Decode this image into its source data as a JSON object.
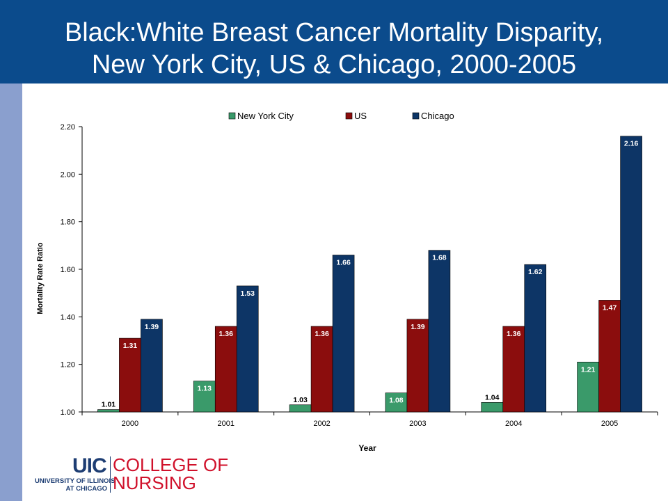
{
  "header": {
    "title_line1": "Black:White Breast Cancer Mortality Disparity,",
    "title_line2": "New York City, US & Chicago, 2000-2005"
  },
  "colors": {
    "header_bg": "#0b4b8c",
    "side_bar": "#8a9fce",
    "logo_navy": "#1d3d73",
    "logo_red": "#d0112b"
  },
  "chart_data": {
    "type": "bar",
    "title": "Black:White Breast Cancer Mortality Disparity, New York City, US & Chicago, 2000-2005",
    "xlabel": "Year",
    "ylabel": "Mortality Rate Ratio",
    "categories": [
      "2000",
      "2001",
      "2002",
      "2003",
      "2004",
      "2005"
    ],
    "series": [
      {
        "name": "New York City",
        "color": "#3a9a6a",
        "values": [
          1.01,
          1.13,
          1.03,
          1.08,
          1.04,
          1.21
        ],
        "labels": [
          "1.01",
          "1.13",
          "1.03",
          "1.08",
          "1.04",
          "1.21"
        ]
      },
      {
        "name": "US",
        "color": "#8b0d0d",
        "values": [
          1.31,
          1.36,
          1.36,
          1.39,
          1.36,
          1.47
        ],
        "labels": [
          "1.31",
          "1.36",
          "1.36",
          "1.39",
          "1.36",
          "1.47"
        ]
      },
      {
        "name": "Chicago",
        "color": "#0d3566",
        "values": [
          1.39,
          1.53,
          1.66,
          1.68,
          1.62,
          2.16
        ],
        "labels": [
          "1.39",
          "1.53",
          "1.66",
          "1.68",
          "1.62",
          "2.16"
        ]
      }
    ],
    "ylim": [
      1.0,
      2.2
    ],
    "yticks": [
      1.0,
      1.2,
      1.4,
      1.6,
      1.8,
      2.0,
      2.2
    ],
    "ytick_labels": [
      "1.00",
      "1.20",
      "1.40",
      "1.60",
      "1.80",
      "2.00",
      "2.20"
    ],
    "legend_position": "top-center",
    "grid": false
  },
  "logo": {
    "mark": "UIC",
    "university_line1": "UNIVERSITY OF ILLINOIS",
    "university_line2": "AT CHICAGO",
    "college_line1": "COLLEGE OF",
    "college_line2": "NURSING"
  }
}
